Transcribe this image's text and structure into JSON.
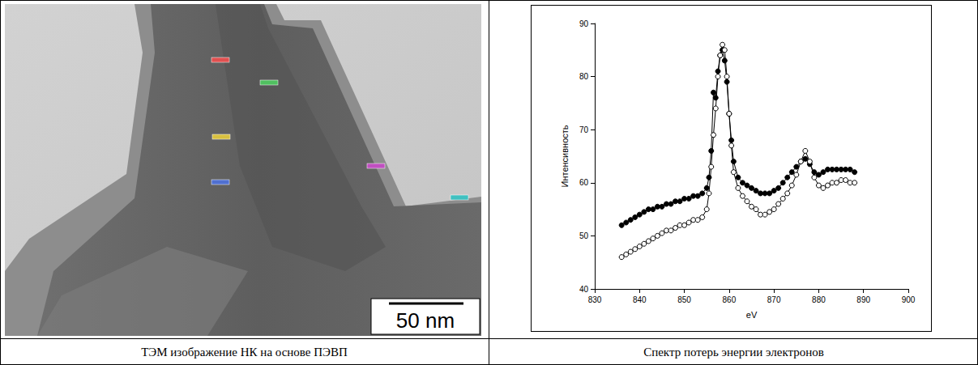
{
  "captions": [
    "ТЭМ изображение НК на основе ПЭВП",
    "Спектр потерь энергии электронов"
  ],
  "image": {
    "scale_bar": "50 nm"
  },
  "chart_data": {
    "type": "line",
    "x_label": "eV",
    "y_label": "Интенсивность",
    "x": [
      836,
      837,
      838,
      839,
      840,
      841,
      842,
      843,
      844,
      845,
      846,
      847,
      848,
      849,
      850,
      851,
      852,
      853,
      854,
      855,
      855.5,
      856,
      856.5,
      857,
      857.5,
      858,
      858.5,
      859,
      859.5,
      860,
      860.5,
      861,
      862,
      863,
      864,
      865,
      866,
      867,
      868,
      869,
      870,
      871,
      872,
      873,
      874,
      875,
      876,
      877,
      878,
      879,
      880,
      881,
      882,
      883,
      884,
      885,
      886,
      887,
      888
    ],
    "series": [
      {
        "color": "#000000",
        "marker": "circle",
        "values": [
          52,
          52.5,
          53,
          53.5,
          54,
          54.5,
          55,
          55,
          55.5,
          55.5,
          56,
          56,
          56.5,
          56.5,
          57,
          57,
          57.5,
          57.5,
          58,
          59,
          61,
          66,
          77,
          76,
          81,
          84,
          85,
          83,
          79,
          73,
          68,
          64,
          61,
          60,
          59.5,
          59,
          58.5,
          58,
          58,
          58,
          58.5,
          59,
          60,
          61,
          62,
          63,
          64,
          64.5,
          63.5,
          62,
          61.5,
          62,
          62.5,
          62.5,
          62.5,
          62.5,
          62.5,
          62.5,
          62
        ]
      },
      {
        "color": "#000000",
        "marker": "open_circle",
        "values": [
          46,
          46.5,
          47,
          47.5,
          48,
          48.5,
          49,
          49.5,
          50,
          50.5,
          51,
          51,
          51.5,
          52,
          52,
          52.5,
          53,
          53,
          53.5,
          55,
          58,
          63,
          69,
          74,
          80,
          84,
          86,
          85,
          80,
          73,
          67,
          62,
          59,
          57.5,
          56.5,
          55.5,
          55,
          54,
          54,
          54.5,
          55,
          56,
          57,
          58,
          59.5,
          61.5,
          64,
          66,
          64,
          61,
          59.5,
          59,
          59.5,
          60,
          60,
          60.5,
          60.5,
          60,
          60
        ]
      }
    ],
    "xlim": [
      830,
      900
    ],
    "xticks": [
      830,
      840,
      850,
      860,
      870,
      880,
      890,
      900
    ],
    "ylim": [
      40,
      90
    ],
    "yticks": [
      40,
      50,
      60,
      70,
      80,
      90
    ],
    "grid": false
  }
}
